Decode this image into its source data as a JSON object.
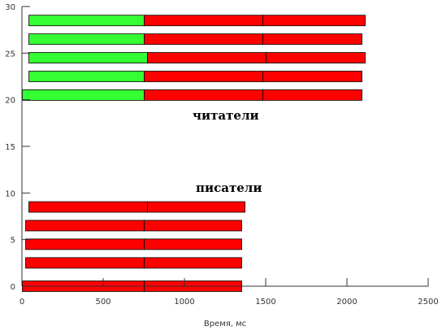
{
  "chart_data": {
    "type": "bar",
    "orientation": "horizontal",
    "stacked": true,
    "xlabel": "Время, мс",
    "ylabel": "",
    "xlim": [
      0,
      2500
    ],
    "ylim": [
      0,
      30
    ],
    "x_ticks": [
      "0",
      "500",
      "1000",
      "1500",
      "2000",
      "2500"
    ],
    "y_ticks": [
      "0",
      "5",
      "10",
      "15",
      "20",
      "25",
      "30"
    ],
    "grid": false,
    "colors": {
      "green": "#33ff33",
      "red": "#ff0000",
      "edge": "#000000"
    },
    "annotations": [
      {
        "text": "писатели"
      },
      {
        "text": "читатели"
      }
    ],
    "series": [
      {
        "group": "писатели",
        "bars": [
          {
            "y": 0,
            "segments": [
              {
                "start": 0,
                "end": 750,
                "color": "red"
              },
              {
                "start": 750,
                "end": 1350,
                "color": "red"
              }
            ]
          },
          {
            "y": 2.5,
            "segments": [
              {
                "start": 20,
                "end": 750,
                "color": "red"
              },
              {
                "start": 750,
                "end": 1350,
                "color": "red"
              }
            ]
          },
          {
            "y": 4.5,
            "segments": [
              {
                "start": 20,
                "end": 750,
                "color": "red"
              },
              {
                "start": 750,
                "end": 1350,
                "color": "red"
              }
            ]
          },
          {
            "y": 6.5,
            "segments": [
              {
                "start": 20,
                "end": 750,
                "color": "red"
              },
              {
                "start": 750,
                "end": 1350,
                "color": "red"
              }
            ]
          },
          {
            "y": 8.5,
            "segments": [
              {
                "start": 40,
                "end": 770,
                "color": "red"
              },
              {
                "start": 770,
                "end": 1370,
                "color": "red"
              }
            ]
          }
        ]
      },
      {
        "group": "читатели",
        "bars": [
          {
            "y": 20.5,
            "segments": [
              {
                "start": 0,
                "end": 750,
                "color": "green"
              },
              {
                "start": 750,
                "end": 1480,
                "color": "red"
              },
              {
                "start": 1480,
                "end": 2090,
                "color": "red"
              }
            ]
          },
          {
            "y": 22.5,
            "segments": [
              {
                "start": 40,
                "end": 750,
                "color": "green"
              },
              {
                "start": 750,
                "end": 1480,
                "color": "red"
              },
              {
                "start": 1480,
                "end": 2090,
                "color": "red"
              }
            ]
          },
          {
            "y": 24.5,
            "segments": [
              {
                "start": 40,
                "end": 770,
                "color": "green"
              },
              {
                "start": 770,
                "end": 1500,
                "color": "red"
              },
              {
                "start": 1500,
                "end": 2110,
                "color": "red"
              }
            ]
          },
          {
            "y": 26.5,
            "segments": [
              {
                "start": 40,
                "end": 750,
                "color": "green"
              },
              {
                "start": 750,
                "end": 1480,
                "color": "red"
              },
              {
                "start": 1480,
                "end": 2090,
                "color": "red"
              }
            ]
          },
          {
            "y": 28.5,
            "segments": [
              {
                "start": 40,
                "end": 750,
                "color": "green"
              },
              {
                "start": 750,
                "end": 1480,
                "color": "red"
              },
              {
                "start": 1480,
                "end": 2110,
                "color": "red"
              }
            ]
          }
        ]
      }
    ]
  }
}
